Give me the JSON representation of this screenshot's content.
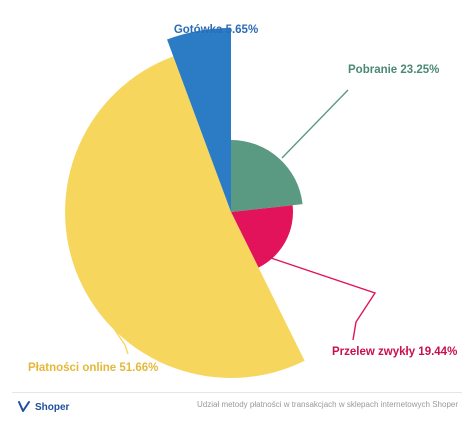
{
  "chart_data": {
    "type": "pie",
    "slices": [
      {
        "label": "Pobranie 23.25%",
        "value": 23.25,
        "color": "#5a9a82",
        "label_color": "#4a8a72"
      },
      {
        "label": "Przelew zwykły 19.44%",
        "value": 19.44,
        "color": "#e2135a",
        "label_color": "#c8104e"
      },
      {
        "label": "Płatności online 51.66%",
        "value": 51.66,
        "color": "#f7d65e",
        "label_color": "#e4b93a"
      },
      {
        "label": "Gotówka 5.65%",
        "value": 5.65,
        "color": "#2b7cc4",
        "label_color": "#2b6cb4"
      }
    ]
  },
  "footer": {
    "logo_text": "Shoper",
    "caption": "Udział metody płatności w transakcjach w sklepach internetowych Shoper"
  }
}
